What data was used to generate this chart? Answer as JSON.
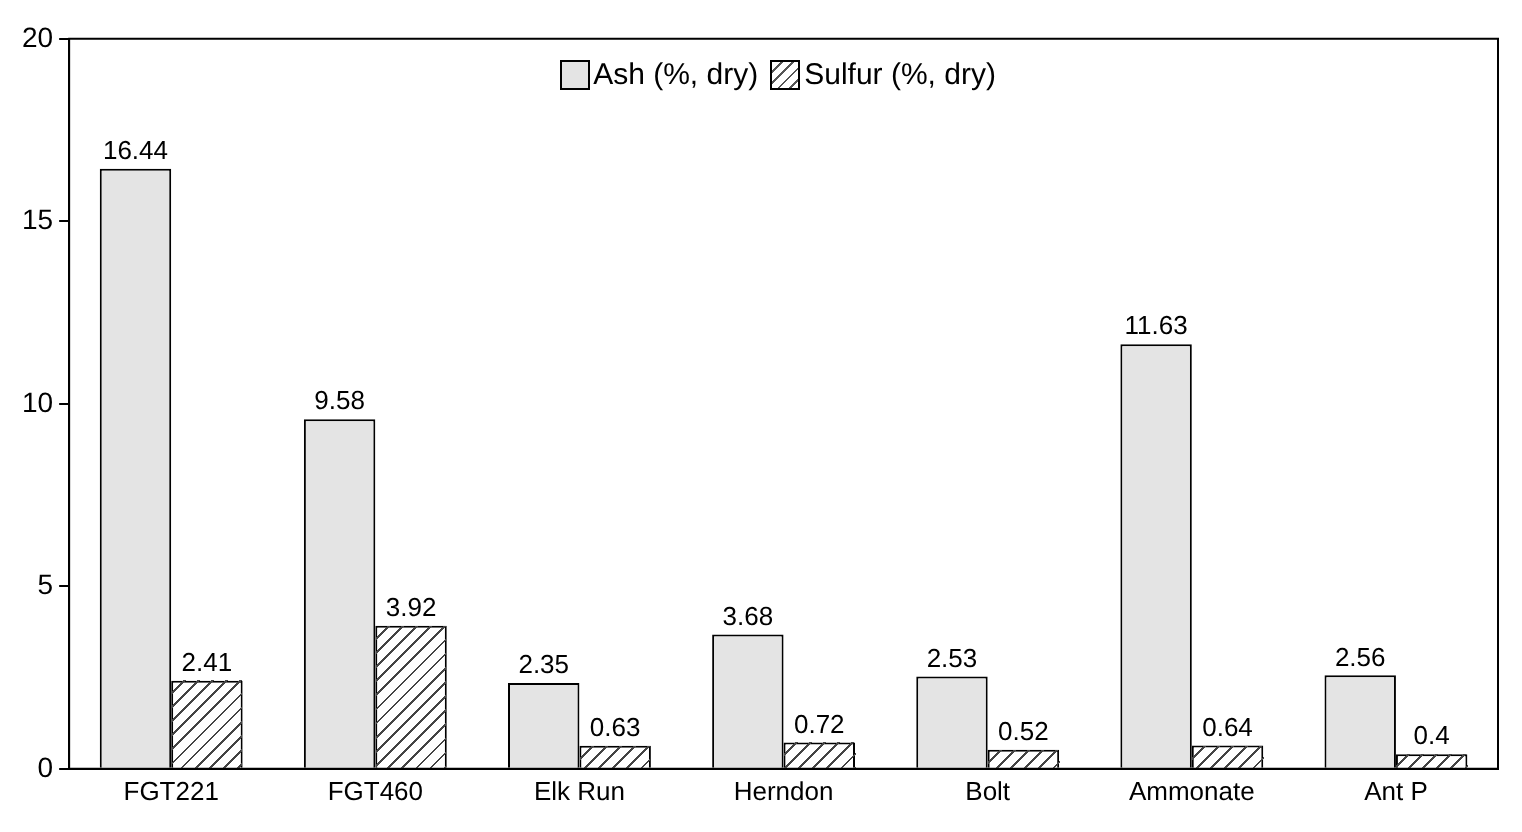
{
  "chart_data": {
    "type": "bar",
    "categories": [
      "FGT221",
      "FGT460",
      "Elk Run",
      "Herndon",
      "Bolt",
      "Ammonate",
      "Ant P"
    ],
    "series": [
      {
        "name": "Ash (%, dry)",
        "color": "#e4e4e4",
        "values": [
          16.44,
          9.58,
          2.35,
          3.68,
          2.53,
          11.63,
          2.56
        ]
      },
      {
        "name": "Sulfur (%, dry)",
        "color": "#ffffff",
        "values": [
          2.41,
          3.92,
          0.63,
          0.72,
          0.52,
          0.64,
          0.4
        ]
      }
    ],
    "ylim": [
      0,
      20
    ],
    "yticks": [
      0,
      5,
      10,
      15,
      20
    ],
    "data_labels": true,
    "legend": "top",
    "grid": false
  }
}
